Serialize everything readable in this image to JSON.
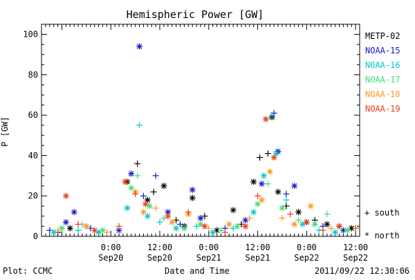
{
  "footer": {
    "left": "Plot: CCMC",
    "center": "Date and Time",
    "right": "2011/09/22 12:30:06"
  },
  "chart_data": {
    "type": "scatter",
    "title": "Hemispheric Power [GW]",
    "ylabel": "P [GW]",
    "xlabel": "Date and Time",
    "ylim": [
      0,
      105
    ],
    "yticks": [
      0,
      20,
      40,
      60,
      80,
      100
    ],
    "xlim_hours": [
      -17,
      61
    ],
    "x_ticks": [
      {
        "hour": 0,
        "time": "0:00",
        "date": "Sep20"
      },
      {
        "hour": 12,
        "time": "12:00",
        "date": "Sep20"
      },
      {
        "hour": 24,
        "time": "0:00",
        "date": "Sep21"
      },
      {
        "hour": 36,
        "time": "12:00",
        "date": "Sep21"
      },
      {
        "hour": 48,
        "time": "0:00",
        "date": "Sep22"
      },
      {
        "hour": 60,
        "time": "12:00",
        "date": "Sep22"
      }
    ],
    "grid": false,
    "legend_position": "right",
    "marker_legend": [
      {
        "symbol": "+",
        "label": "south"
      },
      {
        "symbol": "*",
        "label": "north"
      }
    ],
    "series": [
      {
        "name": "METP-02",
        "color": "#000000",
        "points": [
          {
            "x": -13,
            "y": 2,
            "m": "+"
          },
          {
            "x": -10,
            "y": 4,
            "m": "*"
          },
          {
            "x": -6,
            "y": 5,
            "m": "+"
          },
          {
            "x": 4,
            "y": 27,
            "m": "*"
          },
          {
            "x": 6.5,
            "y": 36,
            "m": "+"
          },
          {
            "x": 9,
            "y": 18,
            "m": "*"
          },
          {
            "x": 10.5,
            "y": 22,
            "m": "+"
          },
          {
            "x": 13,
            "y": 25,
            "m": "*"
          },
          {
            "x": 16,
            "y": 8,
            "m": "+"
          },
          {
            "x": 18,
            "y": 5,
            "m": "*"
          },
          {
            "x": 20,
            "y": 19,
            "m": "*"
          },
          {
            "x": 23,
            "y": 10,
            "m": "+"
          },
          {
            "x": 26,
            "y": 3,
            "m": "*"
          },
          {
            "x": 30,
            "y": 13,
            "m": "*"
          },
          {
            "x": 32,
            "y": 6,
            "m": "+"
          },
          {
            "x": 35,
            "y": 27,
            "m": "*"
          },
          {
            "x": 36.5,
            "y": 39,
            "m": "+"
          },
          {
            "x": 38.5,
            "y": 41,
            "m": "+"
          },
          {
            "x": 39.5,
            "y": 59,
            "m": "*"
          },
          {
            "x": 41,
            "y": 22,
            "m": "*"
          },
          {
            "x": 43,
            "y": 15,
            "m": "+"
          },
          {
            "x": 46,
            "y": 12,
            "m": "*"
          },
          {
            "x": 50,
            "y": 8,
            "m": "+"
          },
          {
            "x": 53,
            "y": 6,
            "m": "*"
          },
          {
            "x": 56,
            "y": 5,
            "m": "+"
          },
          {
            "x": 59,
            "y": 4,
            "m": "*"
          }
        ]
      },
      {
        "name": "NOAA-15",
        "color": "#1418c8",
        "points": [
          {
            "x": -15,
            "y": 3,
            "m": "+"
          },
          {
            "x": -11,
            "y": 7,
            "m": "*"
          },
          {
            "x": -9,
            "y": 12,
            "m": "*"
          },
          {
            "x": -5,
            "y": 4,
            "m": "+"
          },
          {
            "x": 2,
            "y": 3,
            "m": "*"
          },
          {
            "x": 5,
            "y": 31,
            "m": "*"
          },
          {
            "x": 7,
            "y": 94,
            "m": "*"
          },
          {
            "x": 8,
            "y": 20,
            "m": "+"
          },
          {
            "x": 11,
            "y": 30,
            "m": "+"
          },
          {
            "x": 14,
            "y": 12,
            "m": "*"
          },
          {
            "x": 17,
            "y": 6,
            "m": "+"
          },
          {
            "x": 20,
            "y": 23,
            "m": "*"
          },
          {
            "x": 22,
            "y": 9,
            "m": "*"
          },
          {
            "x": 28,
            "y": 4,
            "m": "+"
          },
          {
            "x": 33,
            "y": 8,
            "m": "*"
          },
          {
            "x": 37,
            "y": 26,
            "m": "*"
          },
          {
            "x": 40,
            "y": 61,
            "m": "+"
          },
          {
            "x": 41,
            "y": 42,
            "m": "*"
          },
          {
            "x": 43,
            "y": 21,
            "m": "+"
          },
          {
            "x": 45,
            "y": 25,
            "m": "*"
          },
          {
            "x": 48,
            "y": 7,
            "m": "*"
          },
          {
            "x": 52,
            "y": 5,
            "m": "+"
          },
          {
            "x": 57,
            "y": 3,
            "m": "*"
          }
        ]
      },
      {
        "name": "NOAA-16",
        "color": "#00c8c8",
        "points": [
          {
            "x": -14,
            "y": 2,
            "m": "*"
          },
          {
            "x": -8,
            "y": 3,
            "m": "+"
          },
          {
            "x": -3,
            "y": 2,
            "m": "*"
          },
          {
            "x": 4,
            "y": 14,
            "m": "*"
          },
          {
            "x": 7,
            "y": 55,
            "m": "+"
          },
          {
            "x": 9,
            "y": 10,
            "m": "*"
          },
          {
            "x": 12,
            "y": 7,
            "m": "+"
          },
          {
            "x": 16,
            "y": 4,
            "m": "*"
          },
          {
            "x": 21,
            "y": 5,
            "m": "+"
          },
          {
            "x": 25,
            "y": 2,
            "m": "*"
          },
          {
            "x": 30,
            "y": 4,
            "m": "+"
          },
          {
            "x": 35,
            "y": 12,
            "m": "*"
          },
          {
            "x": 37.5,
            "y": 30,
            "m": "*"
          },
          {
            "x": 39.5,
            "y": 60,
            "m": "+"
          },
          {
            "x": 40.5,
            "y": 41,
            "m": "*"
          },
          {
            "x": 43,
            "y": 18,
            "m": "+"
          },
          {
            "x": 47,
            "y": 6,
            "m": "*"
          },
          {
            "x": 51,
            "y": 3,
            "m": "+"
          },
          {
            "x": 55,
            "y": 2,
            "m": "*"
          }
        ]
      },
      {
        "name": "NOAA-17",
        "color": "#3cdc78",
        "points": [
          {
            "x": -12,
            "y": 4,
            "m": "*"
          },
          {
            "x": -7,
            "y": 6,
            "m": "+"
          },
          {
            "x": -2,
            "y": 3,
            "m": "*"
          },
          {
            "x": 5,
            "y": 24,
            "m": "*"
          },
          {
            "x": 6.5,
            "y": 30,
            "m": "+"
          },
          {
            "x": 9.5,
            "y": 15,
            "m": "*"
          },
          {
            "x": 13,
            "y": 9,
            "m": "+"
          },
          {
            "x": 18,
            "y": 4,
            "m": "*"
          },
          {
            "x": 22,
            "y": 6,
            "m": "*"
          },
          {
            "x": 27,
            "y": 3,
            "m": "+"
          },
          {
            "x": 31,
            "y": 5,
            "m": "*"
          },
          {
            "x": 36,
            "y": 16,
            "m": "*"
          },
          {
            "x": 38.5,
            "y": 26,
            "m": "+"
          },
          {
            "x": 42,
            "y": 14,
            "m": "*"
          },
          {
            "x": 46,
            "y": 8,
            "m": "+"
          },
          {
            "x": 50,
            "y": 6,
            "m": "*"
          },
          {
            "x": 53,
            "y": 11,
            "m": "+"
          },
          {
            "x": 58,
            "y": 3,
            "m": "*"
          }
        ]
      },
      {
        "name": "NOAA-18",
        "color": "#ff961e",
        "points": [
          {
            "x": -13,
            "y": 3,
            "m": "+"
          },
          {
            "x": -6,
            "y": 5,
            "m": "*"
          },
          {
            "x": -1,
            "y": 2,
            "m": "+"
          },
          {
            "x": 6,
            "y": 22,
            "m": "*"
          },
          {
            "x": 8,
            "y": 12,
            "m": "*"
          },
          {
            "x": 11,
            "y": 14,
            "m": "+"
          },
          {
            "x": 15,
            "y": 7,
            "m": "*"
          },
          {
            "x": 19,
            "y": 11,
            "m": "*"
          },
          {
            "x": 24,
            "y": 4,
            "m": "+"
          },
          {
            "x": 29,
            "y": 6,
            "m": "*"
          },
          {
            "x": 34,
            "y": 9,
            "m": "+"
          },
          {
            "x": 37,
            "y": 18,
            "m": "*"
          },
          {
            "x": 39,
            "y": 32,
            "m": "*"
          },
          {
            "x": 42,
            "y": 9,
            "m": "+"
          },
          {
            "x": 45,
            "y": 6,
            "m": "*"
          },
          {
            "x": 49,
            "y": 15,
            "m": "*"
          },
          {
            "x": 54,
            "y": 4,
            "m": "+"
          }
        ]
      },
      {
        "name": "NOAA-19",
        "color": "#e63c14",
        "points": [
          {
            "x": -11,
            "y": 20,
            "m": "*"
          },
          {
            "x": -8,
            "y": 6,
            "m": "+"
          },
          {
            "x": -4,
            "y": 3,
            "m": "*"
          },
          {
            "x": 2,
            "y": 5,
            "m": "+"
          },
          {
            "x": 3.5,
            "y": 27,
            "m": "*"
          },
          {
            "x": 6,
            "y": 21,
            "m": "+"
          },
          {
            "x": 8.5,
            "y": 16,
            "m": "*"
          },
          {
            "x": 14,
            "y": 10,
            "m": "*"
          },
          {
            "x": 19,
            "y": 12,
            "m": "+"
          },
          {
            "x": 23,
            "y": 5,
            "m": "*"
          },
          {
            "x": 28,
            "y": 2,
            "m": "+"
          },
          {
            "x": 33,
            "y": 5,
            "m": "*"
          },
          {
            "x": 36,
            "y": 20,
            "m": "+"
          },
          {
            "x": 38,
            "y": 58,
            "m": "*"
          },
          {
            "x": 40,
            "y": 39,
            "m": "*"
          },
          {
            "x": 44,
            "y": 11,
            "m": "+"
          },
          {
            "x": 48,
            "y": 7,
            "m": "*"
          },
          {
            "x": 52,
            "y": 3,
            "m": "+"
          },
          {
            "x": 56,
            "y": 5,
            "m": "*"
          },
          {
            "x": 60,
            "y": 4,
            "m": "+"
          }
        ]
      }
    ]
  }
}
